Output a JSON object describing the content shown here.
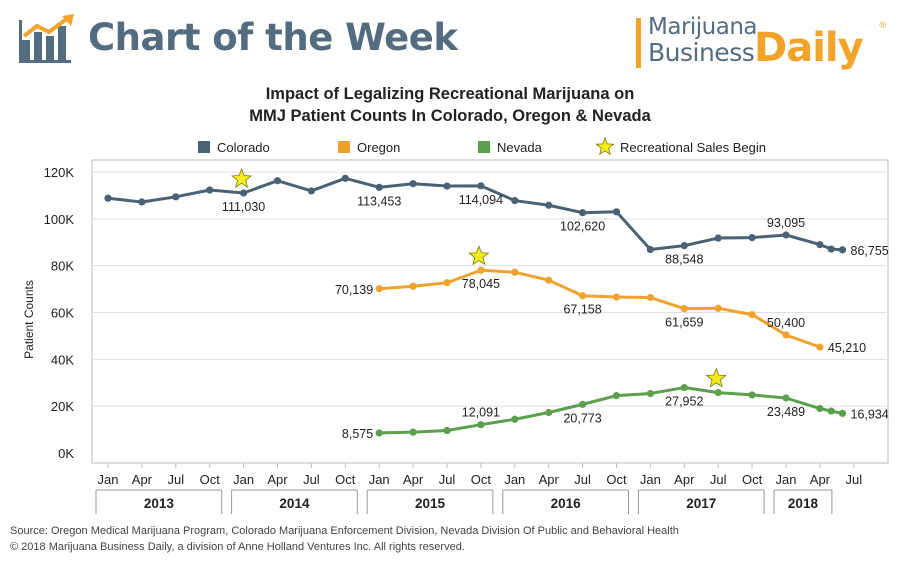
{
  "header": {
    "title": "Chart of the Week",
    "brand_line1": "Marijuana",
    "brand_line2": "Business",
    "brand_daily": "Daily",
    "brand_reg": "®"
  },
  "footer": {
    "source": "Source: Oregon Medical Marijuana Program, Colorado Marijuana Enforcement Division, Nevada Division Of Public and Behavioral Health",
    "copyright": "© 2018 Marijuana Business Daily, a division of Anne Holland Ventures Inc. All rights reserved."
  },
  "colors": {
    "colorado": "#4a6275",
    "oregon": "#f0a22e",
    "nevada": "#5ba04c",
    "star": "#f5ea1c",
    "brand_blue": "#546c80",
    "brand_orange": "#f4a32a"
  },
  "chart_data": {
    "type": "line",
    "title_line1": "Impact of Legalizing Recreational Marijuana on",
    "title_line2": "MMJ Patient Counts In Colorado, Oregon & Nevada",
    "ylabel": "Patient Counts",
    "ylim": [
      0,
      120000
    ],
    "yticks": [
      0,
      20000,
      40000,
      60000,
      80000,
      100000,
      120000
    ],
    "ytick_labels": [
      "0K",
      "20K",
      "40K",
      "60K",
      "80K",
      "100K",
      "120K"
    ],
    "grid": true,
    "legend_position": "top",
    "x": [
      "Jan 2013",
      "Apr 2013",
      "Jul 2013",
      "Oct 2013",
      "Jan 2014",
      "Apr 2014",
      "Jul 2014",
      "Oct 2014",
      "Jan 2015",
      "Apr 2015",
      "Jul 2015",
      "Oct 2015",
      "Jan 2016",
      "Apr 2016",
      "Jul 2016",
      "Oct 2016",
      "Jan 2017",
      "Apr 2017",
      "Jul 2017",
      "Oct 2017",
      "Jan 2018",
      "Apr 2018",
      "May 2018",
      "Jun 2018"
    ],
    "xtick_labels": [
      "Jan",
      "Apr",
      "Jul",
      "Oct",
      "Jan",
      "Apr",
      "Jul",
      "Oct",
      "Jan",
      "Apr",
      "Jul",
      "Oct",
      "Jan",
      "Apr",
      "Jul",
      "Oct",
      "Jan",
      "Apr",
      "Jul",
      "Oct",
      "Jan",
      "Apr",
      "Jul"
    ],
    "years": [
      "2013",
      "2014",
      "2015",
      "2016",
      "2017",
      "2018"
    ],
    "series": [
      {
        "name": "Colorado",
        "color": "#4a6275",
        "points": [
          [
            "Jan 2013",
            108800
          ],
          [
            "Apr 2013",
            107200
          ],
          [
            "Jul 2013",
            109400
          ],
          [
            "Oct 2013",
            112300
          ],
          [
            "Jan 2014",
            111030
          ],
          [
            "Apr 2014",
            116300
          ],
          [
            "Jul 2014",
            111900
          ],
          [
            "Oct 2014",
            117300
          ],
          [
            "Jan 2015",
            113453
          ],
          [
            "Apr 2015",
            115000
          ],
          [
            "Jul 2015",
            114000
          ],
          [
            "Oct 2015",
            114094
          ],
          [
            "Jan 2016",
            107800
          ],
          [
            "Apr 2016",
            105800
          ],
          [
            "Jul 2016",
            102620
          ],
          [
            "Oct 2016",
            103000
          ],
          [
            "Jan 2017",
            86900
          ],
          [
            "Apr 2017",
            88548
          ],
          [
            "Jul 2017",
            91800
          ],
          [
            "Oct 2017",
            92000
          ],
          [
            "Jan 2018",
            93095
          ],
          [
            "Apr 2018",
            89000
          ],
          [
            "May 2018",
            87100
          ],
          [
            "Jun 2018",
            86755
          ]
        ]
      },
      {
        "name": "Oregon",
        "color": "#f0a22e",
        "points": [
          [
            "Jan 2015",
            70139
          ],
          [
            "Apr 2015",
            71200
          ],
          [
            "Jul 2015",
            72700
          ],
          [
            "Oct 2015",
            78045
          ],
          [
            "Jan 2016",
            77200
          ],
          [
            "Apr 2016",
            73800
          ],
          [
            "Jul 2016",
            67158
          ],
          [
            "Oct 2016",
            66600
          ],
          [
            "Jan 2017",
            66400
          ],
          [
            "Apr 2017",
            61659
          ],
          [
            "Jul 2017",
            61800
          ],
          [
            "Oct 2017",
            59100
          ],
          [
            "Jan 2018",
            50400
          ],
          [
            "Apr 2018",
            45210
          ]
        ]
      },
      {
        "name": "Nevada",
        "color": "#5ba04c",
        "points": [
          [
            "Jan 2015",
            8575
          ],
          [
            "Apr 2015",
            8900
          ],
          [
            "Jul 2015",
            9600
          ],
          [
            "Oct 2015",
            12091
          ],
          [
            "Jan 2016",
            14400
          ],
          [
            "Apr 2016",
            17300
          ],
          [
            "Jul 2016",
            20773
          ],
          [
            "Oct 2016",
            24500
          ],
          [
            "Jan 2017",
            25400
          ],
          [
            "Apr 2017",
            27952
          ],
          [
            "Jul 2017",
            25800
          ],
          [
            "Oct 2017",
            24800
          ],
          [
            "Jan 2018",
            23489
          ],
          [
            "Apr 2018",
            19000
          ],
          [
            "May 2018",
            17900
          ],
          [
            "Jun 2018",
            16934
          ]
        ]
      }
    ],
    "data_labels": [
      {
        "series": "Colorado",
        "x": "Jan 2014",
        "text": "111,030",
        "pos": "below"
      },
      {
        "series": "Colorado",
        "x": "Jan 2015",
        "text": "113,453",
        "pos": "below"
      },
      {
        "series": "Colorado",
        "x": "Oct 2015",
        "text": "114,094",
        "pos": "below"
      },
      {
        "series": "Colorado",
        "x": "Jul 2016",
        "text": "102,620",
        "pos": "below"
      },
      {
        "series": "Colorado",
        "x": "Apr 2017",
        "text": "88,548",
        "pos": "below"
      },
      {
        "series": "Colorado",
        "x": "Jan 2018",
        "text": "93,095",
        "pos": "above"
      },
      {
        "series": "Colorado",
        "x": "Jun 2018",
        "text": "86,755",
        "pos": "right"
      },
      {
        "series": "Oregon",
        "x": "Jan 2015",
        "text": "70,139",
        "pos": "left"
      },
      {
        "series": "Oregon",
        "x": "Oct 2015",
        "text": "78,045",
        "pos": "below"
      },
      {
        "series": "Oregon",
        "x": "Jul 2016",
        "text": "67,158",
        "pos": "below"
      },
      {
        "series": "Oregon",
        "x": "Apr 2017",
        "text": "61,659",
        "pos": "below"
      },
      {
        "series": "Oregon",
        "x": "Jan 2018",
        "text": "50,400",
        "pos": "above"
      },
      {
        "series": "Oregon",
        "x": "Apr 2018",
        "text": "45,210",
        "pos": "right"
      },
      {
        "series": "Nevada",
        "x": "Jan 2015",
        "text": "8,575",
        "pos": "left"
      },
      {
        "series": "Nevada",
        "x": "Oct 2015",
        "text": "12,091",
        "pos": "above"
      },
      {
        "series": "Nevada",
        "x": "Jul 2016",
        "text": "20,773",
        "pos": "below"
      },
      {
        "series": "Nevada",
        "x": "Apr 2017",
        "text": "27,952",
        "pos": "below"
      },
      {
        "series": "Nevada",
        "x": "Jan 2018",
        "text": "23,489",
        "pos": "below"
      },
      {
        "series": "Nevada",
        "x": "Jun 2018",
        "text": "16,934",
        "pos": "right"
      }
    ],
    "annotations": {
      "legend_label": "Recreational Sales Begin",
      "markers": [
        {
          "series": "Colorado",
          "x": "Jan 2014",
          "value": 111030
        },
        {
          "series": "Oregon",
          "x": "Oct 2015",
          "value": 78045
        },
        {
          "series": "Nevada",
          "x": "Jul 2017",
          "value": 25800
        }
      ]
    }
  }
}
